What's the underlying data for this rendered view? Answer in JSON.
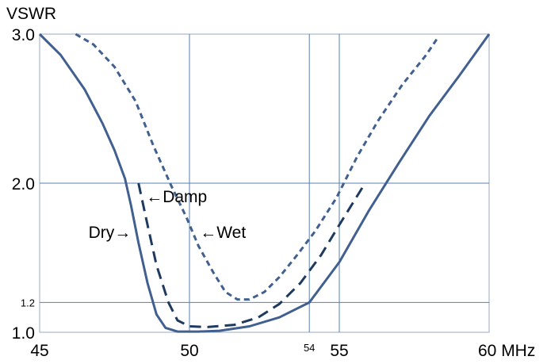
{
  "chart_data": {
    "type": "line",
    "ylabel": "VSWR",
    "x_tick_labels": [
      {
        "value": 45,
        "label": "45"
      },
      {
        "value": 50,
        "label": "50"
      },
      {
        "value": 54,
        "label": "54"
      },
      {
        "value": 55,
        "label": "55"
      },
      {
        "value": 60,
        "label": "60 MHz"
      }
    ],
    "y_tick_labels": [
      {
        "value": 1.0,
        "label": "1.0"
      },
      {
        "value": 1.2,
        "label": "1.2"
      },
      {
        "value": 2.0,
        "label": "2.0"
      },
      {
        "value": 3.0,
        "label": "3.0"
      }
    ],
    "xlim": [
      45,
      60
    ],
    "ylim": [
      1.0,
      3.0
    ],
    "grid": true,
    "gridlines_x": [
      50,
      54,
      55
    ],
    "gridlines_y": [
      1.2,
      2.0
    ],
    "colors": {
      "line": "#41608f",
      "dark_line": "#1f3a5f",
      "grid": "#5a7fb0",
      "frame": "#9aa9bf"
    },
    "series": [
      {
        "name": "Dry",
        "style": "solid",
        "points": [
          [
            45.0,
            3.0
          ],
          [
            45.7,
            2.86
          ],
          [
            46.5,
            2.63
          ],
          [
            47.1,
            2.4
          ],
          [
            47.5,
            2.22
          ],
          [
            47.85,
            2.03
          ],
          [
            48.05,
            1.85
          ],
          [
            48.3,
            1.6
          ],
          [
            48.6,
            1.33
          ],
          [
            48.9,
            1.12
          ],
          [
            49.2,
            1.03
          ],
          [
            49.6,
            1.005
          ],
          [
            50.3,
            1.005
          ],
          [
            51.0,
            1.01
          ],
          [
            52.0,
            1.04
          ],
          [
            53.0,
            1.1
          ],
          [
            54.0,
            1.2
          ],
          [
            55.0,
            1.47
          ],
          [
            56.0,
            1.82
          ],
          [
            57.0,
            2.14
          ],
          [
            58.0,
            2.45
          ],
          [
            59.0,
            2.72
          ],
          [
            60.0,
            3.0
          ]
        ]
      },
      {
        "name": "Damp",
        "style": "long-dash",
        "points": [
          [
            48.3,
            2.0
          ],
          [
            48.6,
            1.72
          ],
          [
            48.9,
            1.45
          ],
          [
            49.3,
            1.2
          ],
          [
            49.6,
            1.08
          ],
          [
            50.0,
            1.04
          ],
          [
            50.6,
            1.035
          ],
          [
            51.5,
            1.05
          ],
          [
            52.3,
            1.1
          ],
          [
            53.0,
            1.19
          ],
          [
            53.7,
            1.33
          ],
          [
            54.4,
            1.52
          ],
          [
            55.0,
            1.72
          ],
          [
            55.4,
            1.85
          ],
          [
            55.8,
            1.98
          ]
        ]
      },
      {
        "name": "Wet",
        "style": "short-dash",
        "points": [
          [
            46.2,
            3.0
          ],
          [
            46.8,
            2.93
          ],
          [
            47.5,
            2.78
          ],
          [
            48.2,
            2.55
          ],
          [
            48.8,
            2.25
          ],
          [
            49.4,
            1.98
          ],
          [
            49.9,
            1.77
          ],
          [
            50.3,
            1.58
          ],
          [
            50.8,
            1.4
          ],
          [
            51.2,
            1.27
          ],
          [
            51.6,
            1.22
          ],
          [
            52.0,
            1.22
          ],
          [
            52.5,
            1.27
          ],
          [
            53.0,
            1.37
          ],
          [
            53.6,
            1.52
          ],
          [
            54.2,
            1.68
          ],
          [
            54.9,
            1.9
          ],
          [
            55.6,
            2.18
          ],
          [
            56.3,
            2.42
          ],
          [
            57.1,
            2.66
          ],
          [
            57.9,
            2.86
          ],
          [
            58.3,
            2.98
          ]
        ]
      }
    ],
    "annotations": [
      {
        "text": "Dry→",
        "series": "Dry",
        "anchor_x": 48.05,
        "anchor_y": 1.67
      },
      {
        "text": "←Damp",
        "series": "Damp",
        "anchor_x": 48.55,
        "anchor_y": 1.91
      },
      {
        "text": "←Wet",
        "series": "Wet",
        "anchor_x": 50.35,
        "anchor_y": 1.67
      }
    ]
  }
}
